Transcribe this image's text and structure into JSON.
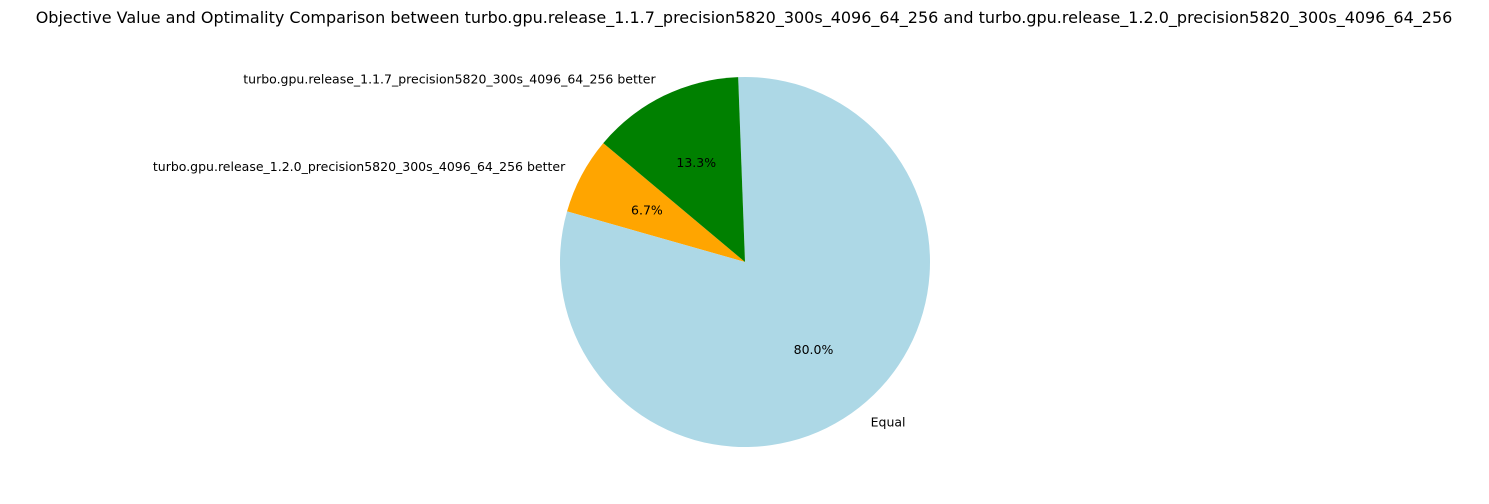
{
  "chart_data": {
    "type": "pie",
    "title": "Objective Value and Optimality Comparison between turbo.gpu.release_1.1.7_precision5820_300s_4096_64_256 and turbo.gpu.release_1.2.0_precision5820_300s_4096_64_256",
    "start_angle_deg": 140,
    "direction": "counterclockwise",
    "slices": [
      {
        "label": "turbo.gpu.release_1.2.0_precision5820_300s_4096_64_256 better",
        "value": 6.7,
        "percent_label": "6.7%",
        "color": "#ffa500"
      },
      {
        "label": "Equal",
        "value": 80.0,
        "percent_label": "80.0%",
        "color": "#add8e6"
      },
      {
        "label": "turbo.gpu.release_1.1.7_precision5820_300s_4096_64_256 better",
        "value": 13.3,
        "percent_label": "13.3%",
        "color": "#008000"
      }
    ]
  }
}
